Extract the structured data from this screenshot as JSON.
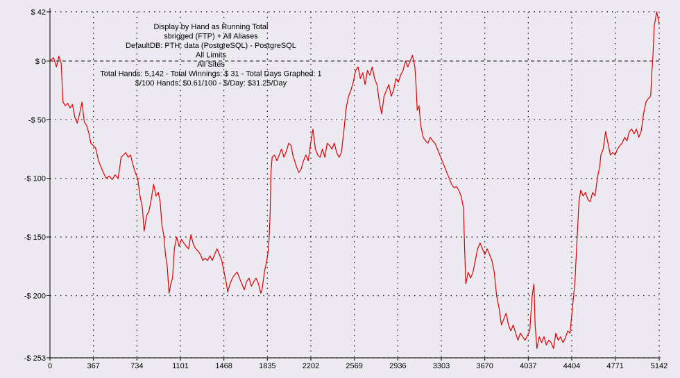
{
  "chart_data": {
    "type": "line",
    "title_lines": [
      "Display by Hand as Running Total",
      "sbrigged (FTP) + All Aliases",
      "DefaultDB: PTH: data (PostgreSQL) - PostgreSQL",
      "All Limits",
      "All Sites",
      "Total Hands: 5,142 - Total Winnings: $ 31 - Total Days Graphed: 1",
      "$/100 Hands: $0.61/100 - $/Day: $31.25/Day"
    ],
    "xlabel": "",
    "ylabel": "",
    "xlim": [
      0,
      5142
    ],
    "ylim": [
      -253,
      42
    ],
    "x_ticks": [
      0,
      367,
      734,
      1101,
      1468,
      1835,
      2202,
      2569,
      2936,
      3303,
      3670,
      4037,
      4404,
      4771,
      5142
    ],
    "y_ticks": [
      {
        "value": 42,
        "label": "$ 42"
      },
      {
        "value": 0,
        "label": "$ 0"
      },
      {
        "value": -50,
        "label": "-$ 50"
      },
      {
        "value": -100,
        "label": "-$ 100"
      },
      {
        "value": -150,
        "label": "-$ 150"
      },
      {
        "value": -200,
        "label": "-$ 200"
      },
      {
        "value": -253,
        "label": "-$ 253"
      }
    ],
    "grid": true,
    "zero_line": true,
    "series": [
      {
        "color": "#dd0000",
        "points": [
          [
            0,
            0
          ],
          [
            30,
            3
          ],
          [
            55,
            -5
          ],
          [
            75,
            4
          ],
          [
            95,
            -2
          ],
          [
            110,
            -35
          ],
          [
            130,
            -38
          ],
          [
            150,
            -36
          ],
          [
            170,
            -40
          ],
          [
            190,
            -37
          ],
          [
            210,
            -48
          ],
          [
            230,
            -53
          ],
          [
            250,
            -45
          ],
          [
            270,
            -35
          ],
          [
            290,
            -52
          ],
          [
            310,
            -55
          ],
          [
            330,
            -62
          ],
          [
            345,
            -70
          ],
          [
            365,
            -72
          ],
          [
            385,
            -74
          ],
          [
            410,
            -85
          ],
          [
            430,
            -90
          ],
          [
            450,
            -95
          ],
          [
            475,
            -100
          ],
          [
            500,
            -98
          ],
          [
            525,
            -101
          ],
          [
            550,
            -97
          ],
          [
            575,
            -100
          ],
          [
            590,
            -90
          ],
          [
            600,
            -82
          ],
          [
            620,
            -80
          ],
          [
            640,
            -78
          ],
          [
            660,
            -82
          ],
          [
            680,
            -80
          ],
          [
            700,
            -88
          ],
          [
            720,
            -95
          ],
          [
            740,
            -100
          ],
          [
            760,
            -115
          ],
          [
            780,
            -125
          ],
          [
            795,
            -145
          ],
          [
            815,
            -132
          ],
          [
            835,
            -128
          ],
          [
            855,
            -118
          ],
          [
            875,
            -105
          ],
          [
            895,
            -115
          ],
          [
            915,
            -112
          ],
          [
            930,
            -120
          ],
          [
            945,
            -140
          ],
          [
            960,
            -148
          ],
          [
            975,
            -165
          ],
          [
            990,
            -175
          ],
          [
            1005,
            -198
          ],
          [
            1020,
            -190
          ],
          [
            1035,
            -185
          ],
          [
            1050,
            -160
          ],
          [
            1070,
            -150
          ],
          [
            1090,
            -158
          ],
          [
            1110,
            -152
          ],
          [
            1130,
            -155
          ],
          [
            1150,
            -158
          ],
          [
            1170,
            -160
          ],
          [
            1190,
            -148
          ],
          [
            1210,
            -156
          ],
          [
            1230,
            -160
          ],
          [
            1250,
            -162
          ],
          [
            1270,
            -165
          ],
          [
            1290,
            -170
          ],
          [
            1310,
            -168
          ],
          [
            1330,
            -170
          ],
          [
            1350,
            -166
          ],
          [
            1370,
            -170
          ],
          [
            1390,
            -165
          ],
          [
            1410,
            -160
          ],
          [
            1430,
            -165
          ],
          [
            1450,
            -170
          ],
          [
            1470,
            -180
          ],
          [
            1490,
            -190
          ],
          [
            1500,
            -197
          ],
          [
            1520,
            -190
          ],
          [
            1540,
            -185
          ],
          [
            1560,
            -182
          ],
          [
            1580,
            -180
          ],
          [
            1600,
            -185
          ],
          [
            1620,
            -190
          ],
          [
            1640,
            -195
          ],
          [
            1660,
            -188
          ],
          [
            1680,
            -185
          ],
          [
            1700,
            -192
          ],
          [
            1720,
            -188
          ],
          [
            1740,
            -185
          ],
          [
            1760,
            -190
          ],
          [
            1780,
            -198
          ],
          [
            1790,
            -195
          ],
          [
            1810,
            -180
          ],
          [
            1830,
            -170
          ],
          [
            1845,
            -160
          ],
          [
            1850,
            -150
          ],
          [
            1858,
            -130
          ],
          [
            1865,
            -95
          ],
          [
            1875,
            -82
          ],
          [
            1895,
            -80
          ],
          [
            1915,
            -85
          ],
          [
            1935,
            -80
          ],
          [
            1955,
            -75
          ],
          [
            1975,
            -82
          ],
          [
            1995,
            -77
          ],
          [
            2015,
            -70
          ],
          [
            2035,
            -72
          ],
          [
            2050,
            -80
          ],
          [
            2065,
            -85
          ],
          [
            2080,
            -90
          ],
          [
            2100,
            -95
          ],
          [
            2120,
            -92
          ],
          [
            2140,
            -85
          ],
          [
            2160,
            -80
          ],
          [
            2180,
            -85
          ],
          [
            2200,
            -70
          ],
          [
            2220,
            -58
          ],
          [
            2240,
            -75
          ],
          [
            2260,
            -80
          ],
          [
            2280,
            -82
          ],
          [
            2300,
            -75
          ],
          [
            2320,
            -82
          ],
          [
            2340,
            -70
          ],
          [
            2360,
            -72
          ],
          [
            2380,
            -75
          ],
          [
            2400,
            -70
          ],
          [
            2420,
            -78
          ],
          [
            2440,
            -82
          ],
          [
            2460,
            -78
          ],
          [
            2480,
            -60
          ],
          [
            2500,
            -40
          ],
          [
            2520,
            -30
          ],
          [
            2540,
            -25
          ],
          [
            2560,
            -18
          ],
          [
            2580,
            -8
          ],
          [
            2600,
            -5
          ],
          [
            2620,
            -15
          ],
          [
            2640,
            -10
          ],
          [
            2660,
            -20
          ],
          [
            2680,
            -8
          ],
          [
            2700,
            -12
          ],
          [
            2720,
            -5
          ],
          [
            2740,
            -15
          ],
          [
            2760,
            -20
          ],
          [
            2780,
            -35
          ],
          [
            2800,
            -45
          ],
          [
            2820,
            -30
          ],
          [
            2840,
            -25
          ],
          [
            2860,
            -20
          ],
          [
            2880,
            -30
          ],
          [
            2900,
            -25
          ],
          [
            2920,
            -15
          ],
          [
            2940,
            -18
          ],
          [
            2960,
            -12
          ],
          [
            2980,
            -8
          ],
          [
            3000,
            0
          ],
          [
            3020,
            -5
          ],
          [
            3040,
            0
          ],
          [
            3060,
            5
          ],
          [
            3080,
            -5
          ],
          [
            3090,
            -20
          ],
          [
            3100,
            -42
          ],
          [
            3115,
            -38
          ],
          [
            3130,
            -55
          ],
          [
            3150,
            -65
          ],
          [
            3170,
            -68
          ],
          [
            3190,
            -70
          ],
          [
            3210,
            -65
          ],
          [
            3230,
            -68
          ],
          [
            3250,
            -70
          ],
          [
            3270,
            -75
          ],
          [
            3290,
            -80
          ],
          [
            3310,
            -85
          ],
          [
            3330,
            -90
          ],
          [
            3350,
            -95
          ],
          [
            3370,
            -100
          ],
          [
            3390,
            -105
          ],
          [
            3410,
            -108
          ],
          [
            3430,
            -107
          ],
          [
            3450,
            -110
          ],
          [
            3470,
            -115
          ],
          [
            3490,
            -125
          ],
          [
            3500,
            -160
          ],
          [
            3510,
            -190
          ],
          [
            3530,
            -180
          ],
          [
            3550,
            -185
          ],
          [
            3570,
            -180
          ],
          [
            3590,
            -170
          ],
          [
            3610,
            -160
          ],
          [
            3630,
            -155
          ],
          [
            3650,
            -160
          ],
          [
            3670,
            -165
          ],
          [
            3690,
            -160
          ],
          [
            3710,
            -165
          ],
          [
            3730,
            -170
          ],
          [
            3750,
            -180
          ],
          [
            3770,
            -200
          ],
          [
            3790,
            -210
          ],
          [
            3810,
            -225
          ],
          [
            3830,
            -220
          ],
          [
            3850,
            -215
          ],
          [
            3870,
            -225
          ],
          [
            3890,
            -230
          ],
          [
            3910,
            -225
          ],
          [
            3930,
            -232
          ],
          [
            3950,
            -238
          ],
          [
            3970,
            -232
          ],
          [
            3990,
            -235
          ],
          [
            4010,
            -238
          ],
          [
            4030,
            -234
          ],
          [
            4050,
            -230
          ],
          [
            4070,
            -200
          ],
          [
            4085,
            -190
          ],
          [
            4095,
            -225
          ],
          [
            4110,
            -245
          ],
          [
            4130,
            -235
          ],
          [
            4150,
            -240
          ],
          [
            4170,
            -235
          ],
          [
            4190,
            -242
          ],
          [
            4210,
            -238
          ],
          [
            4230,
            -240
          ],
          [
            4250,
            -245
          ],
          [
            4270,
            -232
          ],
          [
            4290,
            -238
          ],
          [
            4310,
            -235
          ],
          [
            4330,
            -240
          ],
          [
            4350,
            -236
          ],
          [
            4370,
            -230
          ],
          [
            4390,
            -232
          ],
          [
            4410,
            -210
          ],
          [
            4430,
            -190
          ],
          [
            4450,
            -150
          ],
          [
            4465,
            -120
          ],
          [
            4480,
            -110
          ],
          [
            4500,
            -115
          ],
          [
            4520,
            -112
          ],
          [
            4540,
            -118
          ],
          [
            4560,
            -120
          ],
          [
            4580,
            -112
          ],
          [
            4600,
            -115
          ],
          [
            4620,
            -100
          ],
          [
            4640,
            -90
          ],
          [
            4650,
            -80
          ],
          [
            4670,
            -75
          ],
          [
            4690,
            -60
          ],
          [
            4710,
            -70
          ],
          [
            4730,
            -80
          ],
          [
            4750,
            -78
          ],
          [
            4770,
            -80
          ],
          [
            4790,
            -75
          ],
          [
            4810,
            -72
          ],
          [
            4830,
            -70
          ],
          [
            4850,
            -65
          ],
          [
            4870,
            -68
          ],
          [
            4890,
            -60
          ],
          [
            4910,
            -58
          ],
          [
            4930,
            -62
          ],
          [
            4950,
            -58
          ],
          [
            4970,
            -65
          ],
          [
            4990,
            -60
          ],
          [
            5010,
            -45
          ],
          [
            5030,
            -35
          ],
          [
            5050,
            -32
          ],
          [
            5070,
            -30
          ],
          [
            5080,
            -10
          ],
          [
            5090,
            5
          ],
          [
            5100,
            30
          ],
          [
            5110,
            35
          ],
          [
            5120,
            42
          ],
          [
            5130,
            38
          ],
          [
            5142,
            31
          ]
        ]
      }
    ]
  }
}
